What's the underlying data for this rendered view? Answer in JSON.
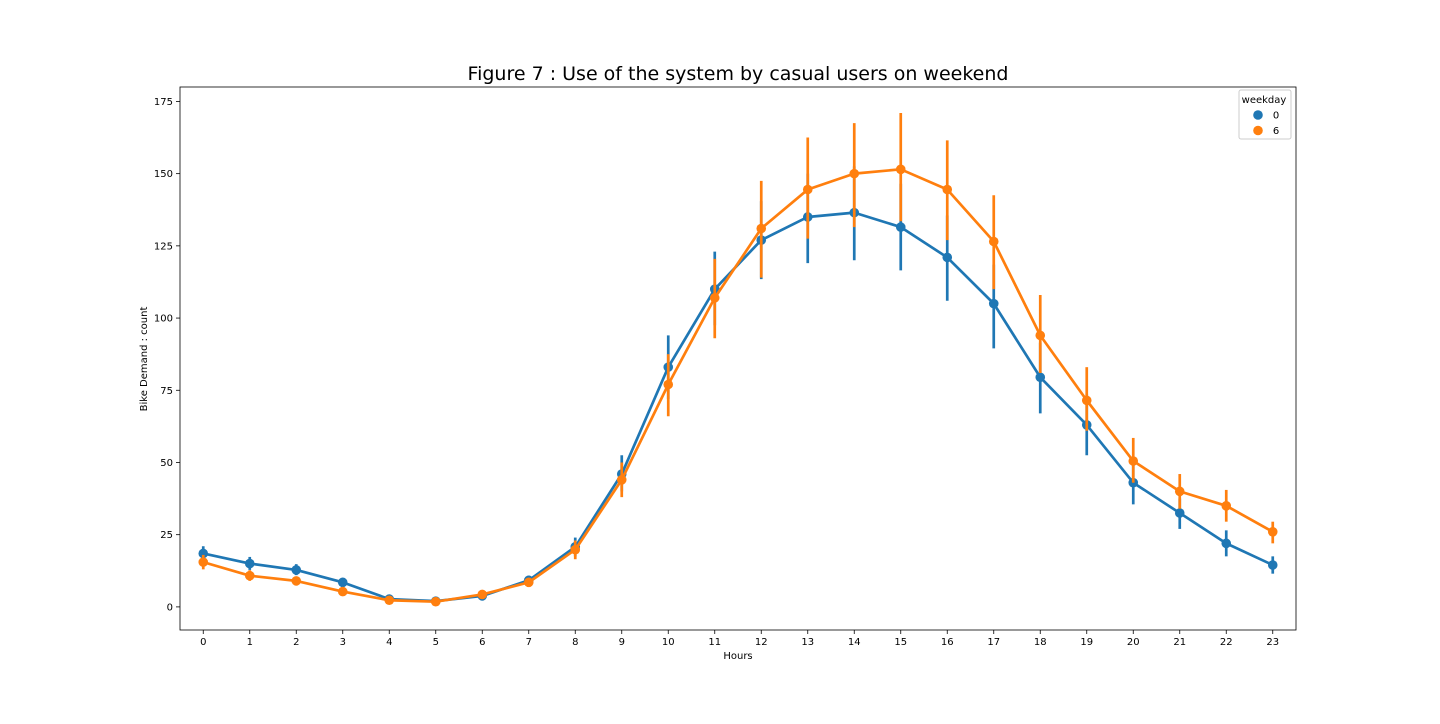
{
  "chart_data": {
    "type": "line",
    "title": "Figure 7 : Use of the system by casual users on weekend",
    "xlabel": "Hours",
    "ylabel": "Bike Demand : count",
    "categories": [
      "0",
      "1",
      "2",
      "3",
      "4",
      "5",
      "6",
      "7",
      "8",
      "9",
      "10",
      "11",
      "12",
      "13",
      "14",
      "15",
      "16",
      "17",
      "18",
      "19",
      "20",
      "21",
      "22",
      "23"
    ],
    "ylim": [
      -8,
      180
    ],
    "yticks": [
      0,
      25,
      50,
      75,
      100,
      125,
      150,
      175
    ],
    "grid": false,
    "legend": {
      "title": "weekday",
      "placement": "top-right"
    },
    "series": [
      {
        "name": "0",
        "color": "#1f77b4",
        "values": [
          18.5,
          15.0,
          12.8,
          8.5,
          2.7,
          2.0,
          3.8,
          9.2,
          20.8,
          46.0,
          83.0,
          110.0,
          127.0,
          135.0,
          136.5,
          131.5,
          121.0,
          105.0,
          79.5,
          63.0,
          43.0,
          32.5,
          22.0,
          14.5
        ],
        "err_low": [
          16.0,
          12.8,
          11.0,
          7.0,
          2.0,
          1.5,
          3.0,
          7.8,
          17.5,
          40.0,
          72.0,
          97.5,
          113.5,
          119.0,
          120.0,
          116.5,
          106.0,
          89.5,
          67.0,
          52.5,
          35.5,
          27.0,
          17.5,
          11.5
        ],
        "err_high": [
          21.0,
          17.3,
          14.8,
          9.8,
          3.5,
          2.7,
          4.7,
          10.8,
          24.0,
          52.5,
          94.0,
          123.0,
          140.5,
          150.0,
          152.5,
          146.5,
          135.5,
          118.5,
          91.5,
          73.5,
          51.5,
          37.5,
          26.5,
          17.5
        ]
      },
      {
        "name": "6",
        "color": "#ff7f0e",
        "values": [
          15.5,
          10.8,
          9.0,
          5.3,
          2.3,
          1.8,
          4.3,
          8.5,
          19.8,
          44.0,
          77.0,
          107.0,
          131.0,
          144.5,
          150.0,
          151.5,
          144.5,
          126.5,
          94.0,
          71.5,
          50.5,
          40.0,
          35.0,
          26.0
        ],
        "err_low": [
          13.0,
          9.0,
          7.7,
          4.3,
          1.6,
          1.2,
          3.3,
          7.0,
          16.5,
          38.0,
          66.0,
          93.0,
          114.0,
          127.5,
          131.5,
          133.5,
          127.0,
          110.0,
          81.0,
          61.0,
          43.0,
          34.0,
          29.5,
          22.0
        ],
        "err_high": [
          18.0,
          12.7,
          10.3,
          6.3,
          3.0,
          2.4,
          5.3,
          10.0,
          23.0,
          50.0,
          87.5,
          120.5,
          147.5,
          162.5,
          167.5,
          171.0,
          161.5,
          142.5,
          108.0,
          83.0,
          58.5,
          46.0,
          40.5,
          29.5
        ]
      }
    ]
  }
}
